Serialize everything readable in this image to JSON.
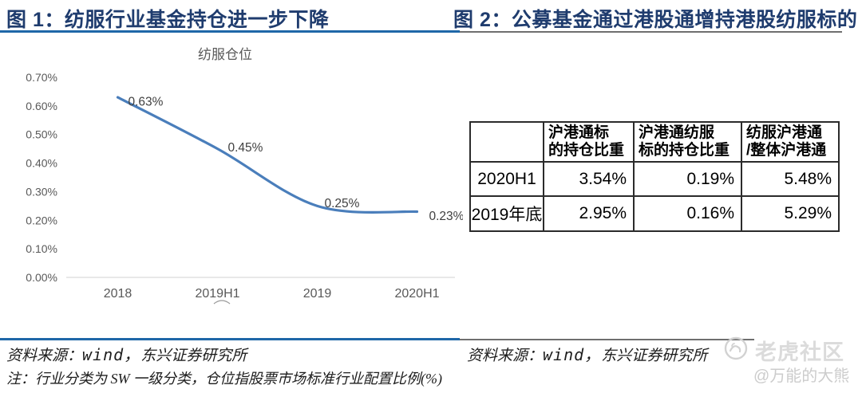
{
  "figure1": {
    "title": "图 1：纺服行业基金持仓进一步下降",
    "source_prefix": "资料来源：",
    "source_wind": "wind，",
    "source_suffix": "东兴证券研究所",
    "note": "注：行业分类为 SW 一级分类，仓位指股票市场标准行业配置比例(%)"
  },
  "figure2": {
    "title": "图 2：公募基金通过港股通增持港股纺服标的",
    "source_prefix": "资料来源：",
    "source_wind": "wind，",
    "source_suffix": "东兴证券研究所"
  },
  "chart_data": [
    {
      "type": "line",
      "title": "纺服仓位",
      "categories": [
        "2018",
        "2019H1",
        "2019",
        "2020H1"
      ],
      "values": [
        0.63,
        0.45,
        0.25,
        0.23
      ],
      "value_labels": [
        "0.63%",
        "0.45%",
        "0.25%",
        "0.23%"
      ],
      "y_ticks": [
        "0.00%",
        "0.10%",
        "0.20%",
        "0.30%",
        "0.40%",
        "0.50%",
        "0.60%",
        "0.70%"
      ],
      "ylim": [
        0,
        0.7
      ],
      "xlabel": "",
      "ylabel": "",
      "grid": false,
      "legend_position": "none",
      "line_color": "#4A7EBB"
    },
    {
      "type": "table",
      "columns": [
        "",
        "沪港通标\n的持仓比重",
        "沪港通纺服\n标的持仓比重",
        "纺服沪港通\n/整体沪港通"
      ],
      "rows": [
        [
          "2020H1",
          "3.54%",
          "0.19%",
          "5.48%"
        ],
        [
          "2019年底",
          "2.95%",
          "0.16%",
          "5.29%"
        ]
      ]
    }
  ],
  "watermark": {
    "community": "老虎社区",
    "handle": "@万能的大熊"
  },
  "colors": {
    "title_navy": "#1F3C6E",
    "rule_blue": "#1F67A8",
    "rule_gray": "#6F6F6F",
    "chart_line": "#4A7EBB",
    "chart_text": "#595959",
    "data_label": "#404040",
    "watermark_gray": "#dbdbdb"
  }
}
